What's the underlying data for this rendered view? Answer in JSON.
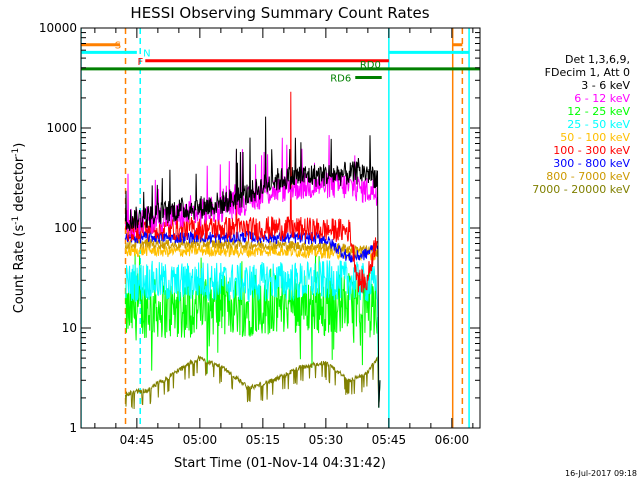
{
  "chart_data": {
    "type": "line",
    "title": "HESSI Observing Summary Count Rates",
    "xlabel": "Start Time (01-Nov-14 04:31:42)",
    "ylabel_main": "Count Rate (s",
    "ylabel_sup1": "-1",
    "ylabel_mid": " detector",
    "ylabel_sup2": "-1",
    "ylabel_end": ")",
    "y_scale": "log",
    "ylim": [
      1,
      10000
    ],
    "xlim_minutes": [
      0,
      95
    ],
    "y_ticks": [
      {
        "value": 1,
        "label": "1"
      },
      {
        "value": 10,
        "label": "10"
      },
      {
        "value": 100,
        "label": "100"
      },
      {
        "value": 1000,
        "label": "1000"
      },
      {
        "value": 10000,
        "label": "10000"
      }
    ],
    "x_ticks": [
      {
        "minute": 13.3,
        "label": "04:45"
      },
      {
        "minute": 28.3,
        "label": "05:00"
      },
      {
        "minute": 43.3,
        "label": "05:15"
      },
      {
        "minute": 58.3,
        "label": "05:30"
      },
      {
        "minute": 73.3,
        "label": "05:45"
      },
      {
        "minute": 88.3,
        "label": "06:00"
      }
    ],
    "legend_header": [
      "Det 1,3,6,9,",
      "FDecim 1, Att 0"
    ],
    "date_stamp": "16-Jul-2017 09:18",
    "observation_window": {
      "start": 10.6,
      "end": 70.6
    },
    "series": [
      {
        "name": "3 - 6 keV",
        "color": "#000000",
        "samples": [
          [
            10.6,
            120
          ],
          [
            16,
            130
          ],
          [
            22,
            150
          ],
          [
            28,
            160
          ],
          [
            34,
            180
          ],
          [
            40,
            220
          ],
          [
            46,
            300
          ],
          [
            52,
            330
          ],
          [
            58,
            340
          ],
          [
            64,
            350
          ],
          [
            68,
            360
          ],
          [
            70.6,
            320
          ]
        ],
        "noise": 0.12,
        "spikes": [
          [
            44,
            1300
          ],
          [
            51,
            800
          ],
          [
            37,
            620
          ]
        ]
      },
      {
        "name": "6 - 12 keV",
        "color": "#ff00ff",
        "samples": [
          [
            10.6,
            110
          ],
          [
            16,
            120
          ],
          [
            22,
            130
          ],
          [
            28,
            140
          ],
          [
            34,
            160
          ],
          [
            40,
            190
          ],
          [
            46,
            240
          ],
          [
            52,
            260
          ],
          [
            58,
            270
          ],
          [
            64,
            260
          ],
          [
            68,
            240
          ],
          [
            70.6,
            230
          ]
        ],
        "noise": 0.14,
        "spikes": [
          [
            37,
            600
          ],
          [
            44,
            520
          ],
          [
            30,
            420
          ]
        ]
      },
      {
        "name": "12 - 25 keV",
        "color": "#00ff00",
        "samples": [
          [
            10.6,
            14
          ],
          [
            16,
            16
          ],
          [
            22,
            15
          ],
          [
            28,
            16
          ],
          [
            34,
            17
          ],
          [
            40,
            16
          ],
          [
            46,
            17
          ],
          [
            52,
            18
          ],
          [
            58,
            17
          ],
          [
            64,
            18
          ],
          [
            68,
            16
          ],
          [
            70.6,
            15
          ]
        ],
        "noise": 0.3,
        "spikes": [
          [
            55,
            4
          ],
          [
            47,
            35
          ]
        ]
      },
      {
        "name": "25 - 50 keV",
        "color": "#00ffff",
        "samples": [
          [
            10.6,
            28
          ],
          [
            16,
            30
          ],
          [
            22,
            28
          ],
          [
            28,
            30
          ],
          [
            34,
            29
          ],
          [
            40,
            28
          ],
          [
            46,
            30
          ],
          [
            52,
            29
          ],
          [
            58,
            30
          ],
          [
            64,
            30
          ],
          [
            68,
            28
          ],
          [
            70.6,
            27
          ]
        ],
        "noise": 0.2,
        "spikes": []
      },
      {
        "name": "50 - 100 keV",
        "color": "#ffbf00",
        "samples": [
          [
            10.6,
            58
          ],
          [
            16,
            60
          ],
          [
            22,
            58
          ],
          [
            28,
            60
          ],
          [
            34,
            59
          ],
          [
            40,
            58
          ],
          [
            46,
            60
          ],
          [
            52,
            58
          ],
          [
            58,
            57
          ],
          [
            64,
            56
          ],
          [
            68,
            55
          ],
          [
            70.6,
            54
          ]
        ],
        "noise": 0.06,
        "spikes": []
      },
      {
        "name": "100 - 300 keV",
        "color": "#ff0000",
        "samples": [
          [
            10.6,
            95
          ],
          [
            16,
            100
          ],
          [
            22,
            98
          ],
          [
            28,
            100
          ],
          [
            34,
            100
          ],
          [
            40,
            98
          ],
          [
            46,
            100
          ],
          [
            52,
            98
          ],
          [
            58,
            96
          ],
          [
            64,
            94
          ],
          [
            66,
            30
          ],
          [
            68,
            28
          ],
          [
            70.6,
            90
          ]
        ],
        "noise": 0.12,
        "spikes": [
          [
            50,
            2300
          ],
          [
            37,
            450
          ]
        ]
      },
      {
        "name": "300 - 800 keV",
        "color": "#0000ff",
        "samples": [
          [
            10.6,
            78
          ],
          [
            16,
            82
          ],
          [
            22,
            80
          ],
          [
            28,
            82
          ],
          [
            34,
            80
          ],
          [
            40,
            82
          ],
          [
            46,
            80
          ],
          [
            52,
            80
          ],
          [
            58,
            78
          ],
          [
            64,
            50
          ],
          [
            68,
            55
          ],
          [
            70.6,
            70
          ]
        ],
        "noise": 0.06,
        "spikes": []
      },
      {
        "name": "800 - 7000 keV",
        "color": "#cc9900",
        "samples": [
          [
            10.6,
            68
          ],
          [
            16,
            70
          ],
          [
            22,
            68
          ],
          [
            28,
            70
          ],
          [
            34,
            69
          ],
          [
            40,
            68
          ],
          [
            46,
            68
          ],
          [
            52,
            66
          ],
          [
            58,
            65
          ],
          [
            64,
            62
          ],
          [
            68,
            60
          ],
          [
            70.6,
            58
          ]
        ],
        "noise": 0.05,
        "spikes": []
      },
      {
        "name": "7000 - 20000 keV",
        "color": "#808000",
        "samples": [
          [
            10.6,
            2.2
          ],
          [
            16,
            2.4
          ],
          [
            22,
            3.5
          ],
          [
            28,
            5
          ],
          [
            34,
            4
          ],
          [
            40,
            2.5
          ],
          [
            46,
            3
          ],
          [
            52,
            4
          ],
          [
            58,
            4.5
          ],
          [
            64,
            3
          ],
          [
            68,
            3.5
          ],
          [
            70.6,
            5
          ]
        ],
        "noise": 0.08,
        "spikes": []
      }
    ],
    "flags": [
      {
        "label": "S",
        "color": "#ff8000",
        "segments": [
          {
            "start": 0,
            "end": 9.3
          },
          {
            "start": 88.5,
            "end": 90.8
          }
        ],
        "value": 6800
      },
      {
        "label": "N",
        "color": "#00ffff",
        "segments": [
          {
            "start": 0,
            "end": 13.3
          },
          {
            "start": 73.3,
            "end": 92.4
          }
        ],
        "value": 5700
      },
      {
        "label": "F",
        "color": "#ff0000",
        "segments": [
          {
            "start": 15.3,
            "end": 73.3
          }
        ],
        "value": 4700
      },
      {
        "label": "RD0",
        "color": "#008000",
        "segments": [
          {
            "start": 0,
            "end": 95
          }
        ],
        "value": 3900
      },
      {
        "label": "RD6",
        "color": "#008000",
        "segments": [
          {
            "start": 65.3,
            "end": 71.6
          }
        ],
        "value": 3200
      }
    ],
    "vlines": [
      {
        "minute": 0,
        "color": "#00ffff",
        "style": "solid"
      },
      {
        "minute": 10.6,
        "color": "#ff8000",
        "style": "dashed"
      },
      {
        "minute": 14.1,
        "color": "#00ffff",
        "style": "dashed"
      },
      {
        "minute": 73.3,
        "color": "#00ffff",
        "style": "solid"
      },
      {
        "minute": 88.5,
        "color": "#ff8000",
        "style": "solid"
      },
      {
        "minute": 90.8,
        "color": "#ff8000",
        "style": "dashed"
      },
      {
        "minute": 92.4,
        "color": "#00ffff",
        "style": "solid"
      }
    ]
  }
}
